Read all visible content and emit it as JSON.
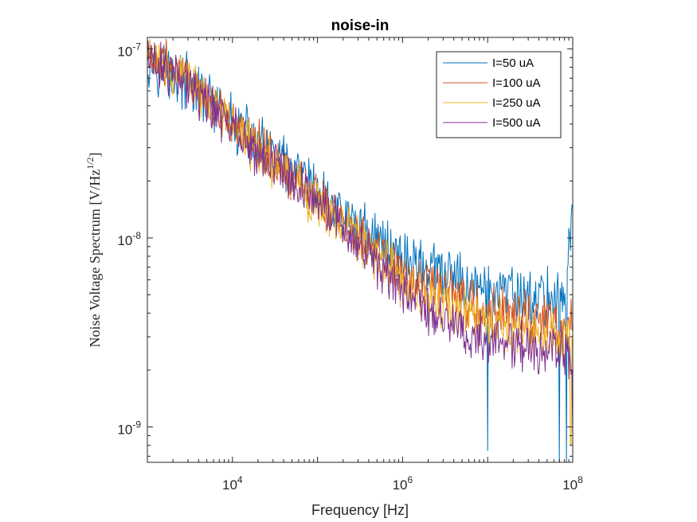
{
  "chart_data": {
    "type": "line",
    "title": "noise-in",
    "xlabel": "Frequency [Hz]",
    "ylabel": {
      "text": "Noise Voltage Spectrum [V/Hz",
      "sup": "1/2",
      "suffix": "]"
    },
    "xscale": "log",
    "yscale": "log",
    "xlim": [
      1000,
      100000000
    ],
    "ylim": [
      6.5e-10,
      1.15e-07
    ],
    "xticks": [
      {
        "value": 10000,
        "base": "10",
        "exp": "4"
      },
      {
        "value": 1000000,
        "base": "10",
        "exp": "6"
      },
      {
        "value": 100000000,
        "base": "10",
        "exp": "8"
      }
    ],
    "yticks": [
      {
        "value": 1e-09,
        "base": "10",
        "exp": "-9"
      },
      {
        "value": 1e-08,
        "base": "10",
        "exp": "-8"
      },
      {
        "value": 1e-07,
        "base": "10",
        "exp": "-7"
      }
    ],
    "grid": false,
    "legend_position": "top-right",
    "series": [
      {
        "name": "I=50 uA",
        "color": "#0072BD",
        "trend": [
          [
            1000,
            9e-08
          ],
          [
            3000,
            6.5e-08
          ],
          [
            10000,
            4e-08
          ],
          [
            30000,
            2.7e-08
          ],
          [
            100000,
            1.7e-08
          ],
          [
            300000,
            1.15e-08
          ],
          [
            1000000,
            8e-09
          ],
          [
            3000000,
            6.3e-09
          ],
          [
            10000000,
            5.3e-09
          ],
          [
            30000000,
            4.8e-09
          ],
          [
            80000000,
            4.8e-09
          ],
          [
            100000000,
            1.4e-08
          ]
        ],
        "spread": 0.25,
        "dips": [
          [
            10000000,
            7.5e-10
          ],
          [
            70000000,
            6.5e-10
          ],
          [
            85000000,
            6.5e-10
          ]
        ]
      },
      {
        "name": "I=100 uA",
        "color": "#D95319",
        "trend": [
          [
            1000,
            9.5e-08
          ],
          [
            3000,
            6.8e-08
          ],
          [
            10000,
            4e-08
          ],
          [
            30000,
            2.6e-08
          ],
          [
            100000,
            1.6e-08
          ],
          [
            300000,
            1.05e-08
          ],
          [
            1000000,
            6.5e-09
          ],
          [
            3000000,
            5e-09
          ],
          [
            10000000,
            4.2e-09
          ],
          [
            30000000,
            3.8e-09
          ],
          [
            100000000,
            3.5e-09
          ]
        ],
        "spread": 0.22,
        "dips": []
      },
      {
        "name": "I=250 uA",
        "color": "#EDB120",
        "trend": [
          [
            1000,
            9.2e-08
          ],
          [
            3000,
            6.5e-08
          ],
          [
            10000,
            3.9e-08
          ],
          [
            30000,
            2.5e-08
          ],
          [
            100000,
            1.55e-08
          ],
          [
            300000,
            1e-08
          ],
          [
            1000000,
            5.8e-09
          ],
          [
            3000000,
            4.3e-09
          ],
          [
            10000000,
            3.5e-09
          ],
          [
            30000000,
            3.1e-09
          ],
          [
            100000000,
            2.8e-09
          ]
        ],
        "spread": 0.22,
        "dips": [
          [
            95000000,
            8e-10
          ]
        ]
      },
      {
        "name": "I=500 uA",
        "color": "#7E2F8E",
        "trend": [
          [
            1000,
            9e-08
          ],
          [
            3000,
            6.3e-08
          ],
          [
            10000,
            3.8e-08
          ],
          [
            30000,
            2.45e-08
          ],
          [
            100000,
            1.5e-08
          ],
          [
            300000,
            9.5e-09
          ],
          [
            1000000,
            5.2e-09
          ],
          [
            3000000,
            3.6e-09
          ],
          [
            10000000,
            2.9e-09
          ],
          [
            30000000,
            2.6e-09
          ],
          [
            100000000,
            2.4e-09
          ]
        ],
        "spread": 0.22,
        "dips": [
          [
            100000000,
            9e-10
          ]
        ]
      }
    ]
  }
}
